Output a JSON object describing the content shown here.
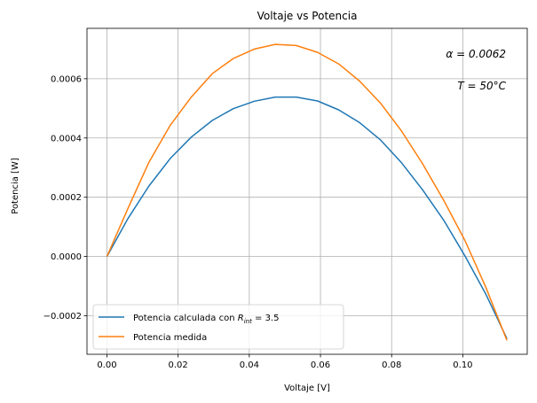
{
  "chart_data": {
    "type": "line",
    "title": "Voltaje vs Potencia",
    "xlabel": "Voltaje [V]",
    "ylabel": "Potencia [W]",
    "xlim": [
      -0.0056,
      0.1181
    ],
    "ylim": [
      -0.00033,
      0.00077
    ],
    "xticks": [
      0.0,
      0.02,
      0.04,
      0.06,
      0.08,
      0.1
    ],
    "xtick_labels": [
      "0.00",
      "0.02",
      "0.04",
      "0.06",
      "0.08",
      "0.10"
    ],
    "yticks": [
      -0.0002,
      0.0,
      0.0002,
      0.0004,
      0.0006
    ],
    "ytick_labels": [
      "−0.0002",
      "0.0000",
      "0.0002",
      "0.0004",
      "0.0006"
    ],
    "grid": true,
    "legend_position": "lower-left",
    "annotations": [
      {
        "label": "α = 0.0062"
      },
      {
        "label": "T = 50°C"
      }
    ],
    "series": [
      {
        "name": "Potencia calculada con R_int = 3.5",
        "legend_prefix": "Potencia calculada con ",
        "legend_symbol": "R",
        "legend_sub": "int",
        "legend_suffix": " = 3.5",
        "color": "#1f77b4",
        "x": [
          0.0,
          0.0059,
          0.0118,
          0.0178,
          0.0237,
          0.0296,
          0.0355,
          0.0414,
          0.0473,
          0.0532,
          0.0592,
          0.0651,
          0.071,
          0.0769,
          0.0828,
          0.0887,
          0.0947,
          0.1006,
          0.1065,
          0.1124
        ],
        "y": [
          0.0,
          0.000128,
          0.000238,
          0.000331,
          0.000403,
          0.000459,
          0.000499,
          0.000524,
          0.000538,
          0.000538,
          0.000525,
          0.000495,
          0.000452,
          0.000393,
          0.000316,
          0.000225,
          0.000121,
          2e-06,
          -0.000128,
          -0.000277
        ]
      },
      {
        "name": "Potencia medida",
        "color": "#ff7f0e",
        "x": [
          0.0,
          0.0059,
          0.0118,
          0.0178,
          0.0237,
          0.0296,
          0.0355,
          0.0414,
          0.0473,
          0.0532,
          0.0592,
          0.0651,
          0.071,
          0.0769,
          0.0828,
          0.0887,
          0.0947,
          0.1006,
          0.1065,
          0.1124
        ],
        "y": [
          0.0,
          0.000162,
          0.000318,
          0.000443,
          0.000538,
          0.000617,
          0.000668,
          0.0007,
          0.000716,
          0.000712,
          0.000689,
          0.00065,
          0.000592,
          0.000517,
          0.000423,
          0.000313,
          0.000188,
          5.4e-05,
          -0.000105,
          -0.000283
        ]
      }
    ]
  }
}
